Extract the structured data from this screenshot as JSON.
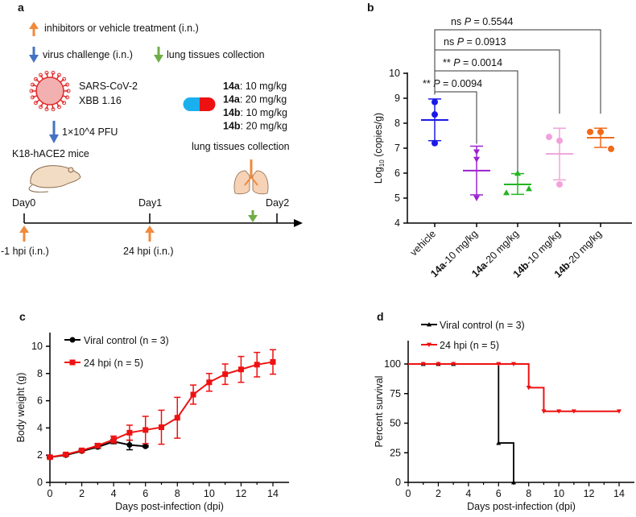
{
  "panel_a": {
    "label": "a",
    "legend": {
      "treatment": "inhibitors or vehicle treatment (i.n.)",
      "challenge": "virus challenge (i.n.)",
      "collection": "lung tissues collection"
    },
    "virus_name": "SARS-CoV-2",
    "virus_strain": "XBB 1.16",
    "dose": "1×10^4 PFU",
    "mice": "K18-hACE2 mice",
    "treatments": [
      {
        "compound": "14a",
        "dose": ": 10 mg/kg"
      },
      {
        "compound": "14a",
        "dose": ": 20 mg/kg"
      },
      {
        "compound": "14b",
        "dose": ": 10 mg/kg"
      },
      {
        "compound": "14b",
        "dose": ": 20 mg/kg"
      }
    ],
    "collection_label": "lung tissues collection",
    "timeline": {
      "day0": "Day0",
      "day1": "Day1",
      "day2": "Day2",
      "dose1": "-1 hpi (i.n.)",
      "dose2": "24 hpi (i.n.)"
    },
    "colors": {
      "orange_arrow": "#f08a3c",
      "blue_arrow": "#4472c4",
      "green_arrow": "#70ad47",
      "pill_left": "#1ab0f0",
      "pill_right": "#ee1111",
      "virus": "#e02828"
    }
  },
  "chart_data": [
    {
      "panel": "b",
      "type": "scatter",
      "ylabel": "Log10 (copies/g)",
      "ylabel_main": "Log",
      "ylabel_sub": "10",
      "ylabel_rest": " (copies/g)",
      "ylim": [
        4,
        10
      ],
      "yticks": [
        4,
        5,
        6,
        7,
        8,
        9,
        10
      ],
      "categories": [
        {
          "bold": "",
          "rest": "vehicle"
        },
        {
          "bold": "14a",
          "rest": "-10 mg/kg"
        },
        {
          "bold": "14a",
          "rest": "-20 mg/kg"
        },
        {
          "bold": "14b",
          "rest": "-10 mg/kg"
        },
        {
          "bold": "14b",
          "rest": "-20 mg/kg"
        }
      ],
      "groups": [
        {
          "points": [
            8.85,
            8.35,
            7.2
          ],
          "mean": 8.13,
          "sd_upper": 8.97,
          "sd_lower": 7.3,
          "marker": "circle",
          "color": "#1a1ae6"
        },
        {
          "points": [
            6.85,
            6.55,
            5.0
          ],
          "mean": 6.1,
          "sd_upper": 7.08,
          "sd_lower": 5.13,
          "marker": "triangle-down",
          "color": "#9b22d0"
        },
        {
          "points": [
            6.0,
            5.22,
            5.38
          ],
          "mean": 5.55,
          "sd_upper": 5.98,
          "sd_lower": 5.15,
          "marker": "triangle-up",
          "color": "#22b522"
        },
        {
          "points": [
            7.45,
            7.3,
            5.55
          ],
          "mean": 6.77,
          "sd_upper": 7.8,
          "sd_lower": 5.73,
          "marker": "circle",
          "color": "#f2a2da"
        },
        {
          "points": [
            7.65,
            7.65,
            6.97
          ],
          "mean": 7.42,
          "sd_upper": 7.8,
          "sd_lower": 7.03,
          "marker": "circle",
          "color": "#f06a1a"
        }
      ],
      "comparisons": [
        {
          "to": 1,
          "sig": "**",
          "p": "= 0.0094"
        },
        {
          "to": 2,
          "sig": "**",
          "p": "= 0.0014"
        },
        {
          "to": 3,
          "sig": "ns",
          "p": "= 0.0913"
        },
        {
          "to": 4,
          "sig": "ns",
          "p": "= 0.5544"
        }
      ],
      "p_symbol": "P"
    },
    {
      "panel": "c",
      "type": "line",
      "xlabel": "Days post-infection (dpi)",
      "ylabel": "Body weight (g)",
      "xlim": [
        0,
        14
      ],
      "ylim": [
        0,
        10
      ],
      "xticks": [
        0,
        2,
        4,
        6,
        8,
        10,
        12,
        14
      ],
      "yticks": [
        0,
        2,
        4,
        6,
        8,
        10
      ],
      "legend_position": "top-left",
      "series": [
        {
          "name": "Viral control (n = 3)",
          "color": "#000000",
          "marker": "circle",
          "x": [
            0,
            1,
            2,
            3,
            4,
            5,
            6
          ],
          "y": [
            1.85,
            2.0,
            2.3,
            2.6,
            3.0,
            2.75,
            2.65
          ],
          "err": [
            0.05,
            0.05,
            0.05,
            0.1,
            0.15,
            0.35,
            0.05
          ]
        },
        {
          "name": "24 hpi (n = 5)",
          "color": "#ee1111",
          "marker": "square",
          "x": [
            0,
            1,
            2,
            3,
            4,
            5,
            6,
            7,
            8,
            9,
            10,
            11,
            12,
            13,
            14
          ],
          "y": [
            1.85,
            2.05,
            2.35,
            2.7,
            3.15,
            3.65,
            3.85,
            4.05,
            4.75,
            6.45,
            7.35,
            7.95,
            8.3,
            8.65,
            8.85
          ],
          "err": [
            0.1,
            0.1,
            0.1,
            0.15,
            0.25,
            0.55,
            1.0,
            1.25,
            1.5,
            0.7,
            0.65,
            0.75,
            0.95,
            0.9,
            0.9
          ]
        }
      ]
    },
    {
      "panel": "d",
      "type": "line",
      "step": true,
      "xlabel": "Days post-infection (dpi)",
      "ylabel": "Percent survival",
      "xlim": [
        0,
        14
      ],
      "ylim": [
        0,
        100
      ],
      "xticks": [
        0,
        2,
        4,
        6,
        8,
        10,
        12,
        14
      ],
      "yticks": [
        0,
        25,
        50,
        75,
        100
      ],
      "legend_position": "top-left",
      "series": [
        {
          "name": "Viral control (n = 3)",
          "color": "#000000",
          "marker": "triangle-up",
          "steps": [
            [
              0,
              100
            ],
            [
              6,
              33.3
            ],
            [
              7,
              0
            ]
          ],
          "end": 7,
          "markers": [
            1,
            2,
            3,
            6,
            7
          ]
        },
        {
          "name": "24 hpi (n = 5)",
          "color": "#ee1111",
          "marker": "triangle-down",
          "steps": [
            [
              0,
              100
            ],
            [
              8,
              80
            ],
            [
              9,
              60
            ]
          ],
          "end": 14,
          "markers": [
            1,
            2,
            3,
            6,
            7,
            8,
            9,
            10,
            11,
            14
          ]
        }
      ]
    }
  ],
  "panel_labels": {
    "b": "b",
    "c": "c",
    "d": "d"
  }
}
